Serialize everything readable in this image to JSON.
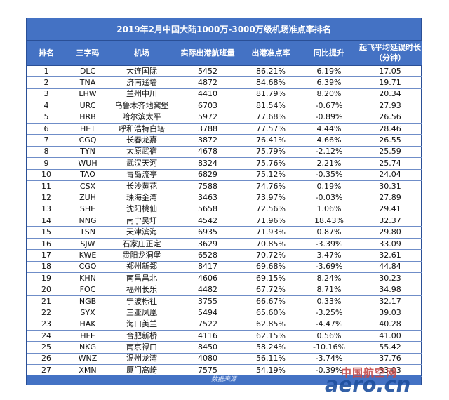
{
  "title": "2019年2月中国大陆1000万-3000万级机场准点率排名",
  "headers": {
    "rank": "排名",
    "code": "三字码",
    "airport": "机场",
    "flights": "实际出港航班量",
    "punctuality": "出港准点率",
    "change": "同比提升",
    "delay_line1": "起飞平均延误时长",
    "delay_line2": "（分钟）"
  },
  "rows": [
    {
      "rank": "1",
      "code": "DLC",
      "airport": "大连国际",
      "flights": "5452",
      "punctuality": "86.21%",
      "change": "6.19%",
      "delay": "17.05"
    },
    {
      "rank": "2",
      "code": "TNA",
      "airport": "济南遥墙",
      "flights": "4872",
      "punctuality": "84.68%",
      "change": "6.39%",
      "delay": "19.71"
    },
    {
      "rank": "3",
      "code": "LHW",
      "airport": "兰州中川",
      "flights": "4410",
      "punctuality": "81.79%",
      "change": "8.20%",
      "delay": "20.34"
    },
    {
      "rank": "4",
      "code": "URC",
      "airport": "乌鲁木齐地窝堡",
      "flights": "6703",
      "punctuality": "81.54%",
      "change": "-0.67%",
      "delay": "27.93"
    },
    {
      "rank": "5",
      "code": "HRB",
      "airport": "哈尔滨太平",
      "flights": "5972",
      "punctuality": "77.68%",
      "change": "-0.89%",
      "delay": "26.56"
    },
    {
      "rank": "6",
      "code": "HET",
      "airport": "呼和浩特白塔",
      "flights": "3788",
      "punctuality": "77.57%",
      "change": "4.44%",
      "delay": "28.46"
    },
    {
      "rank": "7",
      "code": "CGQ",
      "airport": "长春龙嘉",
      "flights": "3872",
      "punctuality": "76.41%",
      "change": "4.66%",
      "delay": "26.55"
    },
    {
      "rank": "8",
      "code": "TYN",
      "airport": "太原武宿",
      "flights": "4678",
      "punctuality": "75.79%",
      "change": "-2.12%",
      "delay": "25.59"
    },
    {
      "rank": "9",
      "code": "WUH",
      "airport": "武汉天河",
      "flights": "8324",
      "punctuality": "75.76%",
      "change": "2.21%",
      "delay": "25.74"
    },
    {
      "rank": "10",
      "code": "TAO",
      "airport": "青岛流亭",
      "flights": "6829",
      "punctuality": "75.12%",
      "change": "-0.35%",
      "delay": "24.04"
    },
    {
      "rank": "11",
      "code": "CSX",
      "airport": "长沙黄花",
      "flights": "7588",
      "punctuality": "74.76%",
      "change": "0.19%",
      "delay": "30.31"
    },
    {
      "rank": "12",
      "code": "ZUH",
      "airport": "珠海金湾",
      "flights": "3463",
      "punctuality": "73.97%",
      "change": "-0.03%",
      "delay": "27.89"
    },
    {
      "rank": "13",
      "code": "SHE",
      "airport": "沈阳桃仙",
      "flights": "5658",
      "punctuality": "72.56%",
      "change": "1.06%",
      "delay": "29.41"
    },
    {
      "rank": "14",
      "code": "NNG",
      "airport": "南宁吴圩",
      "flights": "4542",
      "punctuality": "71.96%",
      "change": "18.43%",
      "delay": "32.37"
    },
    {
      "rank": "15",
      "code": "TSN",
      "airport": "天津滨海",
      "flights": "6935",
      "punctuality": "71.93%",
      "change": "0.87%",
      "delay": "29.80"
    },
    {
      "rank": "16",
      "code": "SJW",
      "airport": "石家庄正定",
      "flights": "3629",
      "punctuality": "70.85%",
      "change": "-3.39%",
      "delay": "33.09"
    },
    {
      "rank": "17",
      "code": "KWE",
      "airport": "贵阳龙洞堡",
      "flights": "6528",
      "punctuality": "70.72%",
      "change": "3.47%",
      "delay": "32.61"
    },
    {
      "rank": "18",
      "code": "CGO",
      "airport": "郑州新郑",
      "flights": "8417",
      "punctuality": "69.68%",
      "change": "-3.69%",
      "delay": "44.84"
    },
    {
      "rank": "19",
      "code": "KHN",
      "airport": "南昌昌北",
      "flights": "4606",
      "punctuality": "69.15%",
      "change": "8.24%",
      "delay": "30.23"
    },
    {
      "rank": "20",
      "code": "FOC",
      "airport": "福州长乐",
      "flights": "4482",
      "punctuality": "67.72%",
      "change": "8.71%",
      "delay": "34.98"
    },
    {
      "rank": "21",
      "code": "NGB",
      "airport": "宁波栎社",
      "flights": "3755",
      "punctuality": "66.67%",
      "change": "0.33%",
      "delay": "32.17"
    },
    {
      "rank": "22",
      "code": "SYX",
      "airport": "三亚凤凰",
      "flights": "5494",
      "punctuality": "65.60%",
      "change": "-3.25%",
      "delay": "39.03"
    },
    {
      "rank": "23",
      "code": "HAK",
      "airport": "海口美兰",
      "flights": "7522",
      "punctuality": "62.85%",
      "change": "-4.47%",
      "delay": "40.28"
    },
    {
      "rank": "24",
      "code": "HFE",
      "airport": "合肥新桥",
      "flights": "4116",
      "punctuality": "62.15%",
      "change": "0.56%",
      "delay": "41.00"
    },
    {
      "rank": "25",
      "code": "NKG",
      "airport": "南京禄口",
      "flights": "8450",
      "punctuality": "58.24%",
      "change": "-10.16%",
      "delay": "55.42"
    },
    {
      "rank": "26",
      "code": "WNZ",
      "airport": "温州龙湾",
      "flights": "4080",
      "punctuality": "56.11%",
      "change": "-3.74%",
      "delay": "37.76"
    },
    {
      "rank": "27",
      "code": "XMN",
      "airport": "厦门高崎",
      "flights": "7575",
      "punctuality": "54.19%",
      "change": "-0.39%",
      "delay": "33.03"
    }
  ],
  "footer": "数据来源",
  "watermark": {
    "cn": "中国航空网",
    "en": "aero.cn"
  },
  "colors": {
    "header_bg": "#4472c4",
    "border": "#2a4f96",
    "row_line": "#6f8dc8",
    "watermark_red": "#c44a4a",
    "watermark_blue": "#1e4f9e"
  }
}
